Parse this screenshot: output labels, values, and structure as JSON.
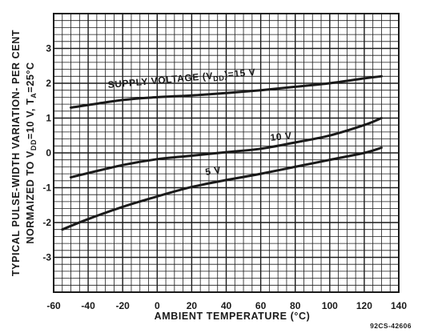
{
  "chart_data": {
    "type": "line",
    "xlabel": "AMBIENT TEMPERATURE (°C)",
    "ylabel_line1": "TYPICAL PULSE-WIDTH VARIATION- PER CENT",
    "ylabel_line2_prefix": "NORMAIZED TO V",
    "ylabel_line2_sub1": "DD",
    "ylabel_line2_middle": "=10 V, T",
    "ylabel_line2_sub2": "A",
    "ylabel_line2_suffix": "=25°C",
    "xlim": [
      -60,
      140
    ],
    "ylim": [
      -4,
      4
    ],
    "x_tick_labels": [
      "-60",
      "-40",
      "-20",
      "0",
      "20",
      "40",
      "60",
      "80",
      "100",
      "120",
      "140"
    ],
    "y_tick_labels": [
      "3",
      "2",
      "1",
      "0",
      "-1",
      "-2",
      "-3"
    ],
    "grid": true,
    "series": [
      {
        "label_prefix": "SUPPLY VOLTAGE (V",
        "label_sub": "DD",
        "label_suffix": ")=15 V",
        "x": [
          -50,
          -20,
          0,
          20,
          40,
          60,
          80,
          100,
          120,
          130
        ],
        "y": [
          1.3,
          1.52,
          1.6,
          1.65,
          1.72,
          1.8,
          1.9,
          2.0,
          2.14,
          2.2
        ]
      },
      {
        "label": "10 V",
        "x": [
          -50,
          -20,
          0,
          20,
          40,
          60,
          80,
          100,
          120,
          130
        ],
        "y": [
          -0.7,
          -0.35,
          -0.18,
          -0.08,
          0.02,
          0.12,
          0.3,
          0.5,
          0.8,
          1.0
        ]
      },
      {
        "label": "5 V",
        "x": [
          -55,
          -40,
          -20,
          0,
          20,
          40,
          60,
          80,
          100,
          120,
          130
        ],
        "y": [
          -2.2,
          -1.9,
          -1.55,
          -1.25,
          -0.98,
          -0.78,
          -0.6,
          -0.4,
          -0.2,
          0.0,
          0.15
        ]
      }
    ],
    "figure_code": "92CS-42606"
  }
}
